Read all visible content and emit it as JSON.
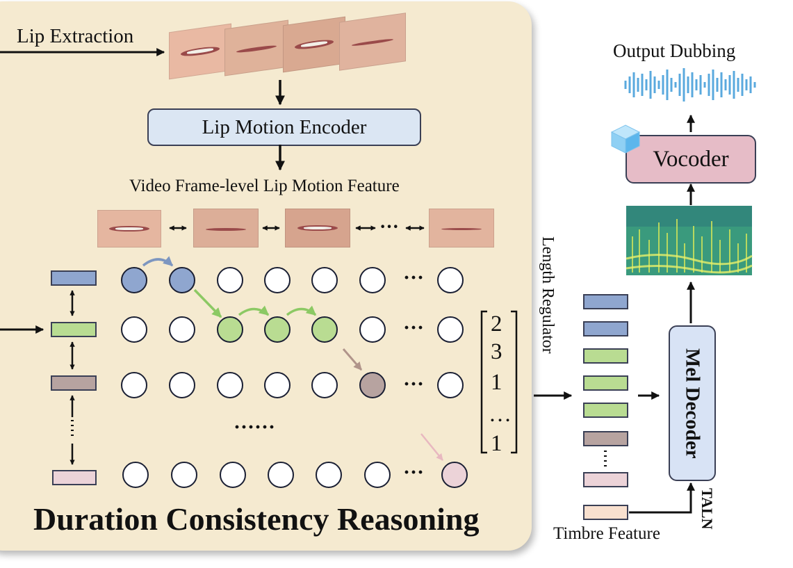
{
  "lip_extraction_label": "Lip Extraction",
  "lip_motion_encoder_label": "Lip Motion Encoder",
  "lip_motion_feature_label": "Video Frame-level Lip Motion Feature",
  "ellipsis_dots": "···",
  "ellipsis_row": "······",
  "duration_vector": [
    "2",
    "3",
    "1",
    "…",
    "1"
  ],
  "section_title": "Duration Consistency Reasoning",
  "length_regulator_label": "Length Regulator",
  "mel_decoder_label": "Mel Decoder",
  "taln_label": "TALN",
  "timbre_feature_label": "Timbre Feature",
  "vocoder_label": "Vocoder",
  "output_dubbing_label": "Output Dubbing",
  "colors": {
    "panel_bg": "#f5ead0",
    "blue_token": "#8fa6cf",
    "green_token": "#b9dc92",
    "brown_token": "#b7a3a0",
    "pink_token": "#ecd3d8",
    "peach_token": "#f8e0cf",
    "encoder_box": "#dbe6f3",
    "vocoder_box": "#e6bcc7",
    "mel_decoder_box": "#d8e3f5",
    "green_arrow": "#8cc964",
    "blue_arrow": "#7d96c0"
  },
  "icons": [
    "right-arrow-icon",
    "down-arrow-icon",
    "double-arrow-icon",
    "curved-arrow-icon",
    "ice-cube-icon",
    "waveform-icon",
    "spectrogram-icon"
  ]
}
